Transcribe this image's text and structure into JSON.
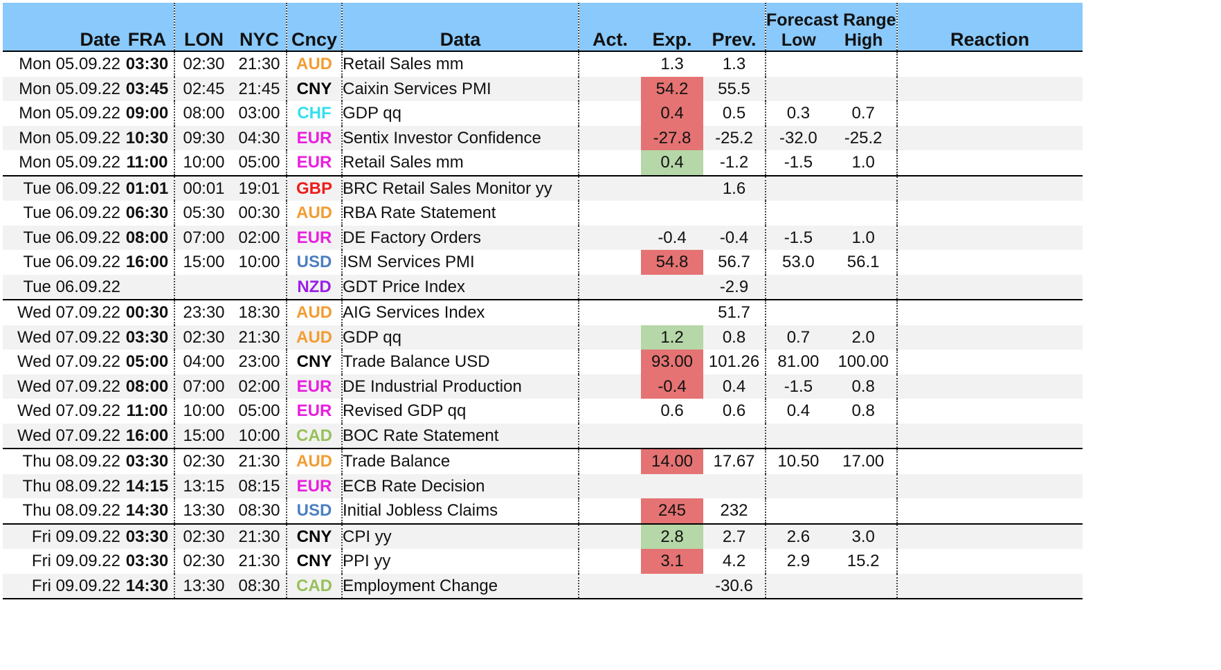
{
  "colors": {
    "header_bg": "#89c9fb",
    "exp_below": "#e57373",
    "exp_above": "#b6d7a8",
    "ccy": {
      "AUD": "#f39c33",
      "CNY": "#000000",
      "CHF": "#33e0ee",
      "EUR": "#ea1ee0",
      "GBP": "#ee1c1c",
      "USD": "#4b7fc2",
      "NZD": "#9b1fe8",
      "CAD": "#97c05a"
    }
  },
  "header": {
    "date": "Date",
    "fra": "FRA",
    "lon": "LON",
    "nyc": "NYC",
    "cncy": "Cncy",
    "data": "Data",
    "act": "Act.",
    "exp": "Exp.",
    "prev": "Prev.",
    "forecast_range": "Forecast Range",
    "low": "Low",
    "high": "High",
    "reaction": "Reaction"
  },
  "rows": [
    {
      "date": "Mon 05.09.22",
      "fra": "03:30",
      "lon": "02:30",
      "nyc": "21:30",
      "ccy": "AUD",
      "data": "Retail Sales mm",
      "act": "",
      "exp": "1.3",
      "exp_hl": "",
      "prev": "1.3",
      "low": "",
      "high": "",
      "reaction": "",
      "group_start": false
    },
    {
      "date": "Mon 05.09.22",
      "fra": "03:45",
      "lon": "02:45",
      "nyc": "21:45",
      "ccy": "CNY",
      "data": "Caixin Services PMI",
      "act": "",
      "exp": "54.2",
      "exp_hl": "red",
      "prev": "55.5",
      "low": "",
      "high": "",
      "reaction": "",
      "group_start": false
    },
    {
      "date": "Mon 05.09.22",
      "fra": "09:00",
      "lon": "08:00",
      "nyc": "03:00",
      "ccy": "CHF",
      "data": "GDP qq",
      "act": "",
      "exp": "0.4",
      "exp_hl": "red",
      "prev": "0.5",
      "low": "0.3",
      "high": "0.7",
      "reaction": "",
      "group_start": false
    },
    {
      "date": "Mon 05.09.22",
      "fra": "10:30",
      "lon": "09:30",
      "nyc": "04:30",
      "ccy": "EUR",
      "data": "Sentix Investor Confidence",
      "act": "",
      "exp": "-27.8",
      "exp_hl": "red",
      "prev": "-25.2",
      "low": "-32.0",
      "high": "-25.2",
      "reaction": "",
      "group_start": false
    },
    {
      "date": "Mon 05.09.22",
      "fra": "11:00",
      "lon": "10:00",
      "nyc": "05:00",
      "ccy": "EUR",
      "data": "Retail Sales mm",
      "act": "",
      "exp": "0.4",
      "exp_hl": "green",
      "prev": "-1.2",
      "low": "-1.5",
      "high": "1.0",
      "reaction": "",
      "group_start": false
    },
    {
      "date": "Tue 06.09.22",
      "fra": "01:01",
      "lon": "00:01",
      "nyc": "19:01",
      "ccy": "GBP",
      "data": "BRC Retail Sales Monitor yy",
      "act": "",
      "exp": "",
      "exp_hl": "",
      "prev": "1.6",
      "low": "",
      "high": "",
      "reaction": "",
      "group_start": true
    },
    {
      "date": "Tue 06.09.22",
      "fra": "06:30",
      "lon": "05:30",
      "nyc": "00:30",
      "ccy": "AUD",
      "data": "RBA Rate Statement",
      "act": "",
      "exp": "",
      "exp_hl": "",
      "prev": "",
      "low": "",
      "high": "",
      "reaction": "",
      "group_start": false
    },
    {
      "date": "Tue 06.09.22",
      "fra": "08:00",
      "lon": "07:00",
      "nyc": "02:00",
      "ccy": "EUR",
      "data": "DE Factory Orders",
      "act": "",
      "exp": "-0.4",
      "exp_hl": "",
      "prev": "-0.4",
      "low": "-1.5",
      "high": "1.0",
      "reaction": "",
      "group_start": false
    },
    {
      "date": "Tue 06.09.22",
      "fra": "16:00",
      "lon": "15:00",
      "nyc": "10:00",
      "ccy": "USD",
      "data": "ISM Services PMI",
      "act": "",
      "exp": "54.8",
      "exp_hl": "red",
      "prev": "56.7",
      "low": "53.0",
      "high": "56.1",
      "reaction": "",
      "group_start": false
    },
    {
      "date": "Tue 06.09.22",
      "fra": "",
      "lon": "",
      "nyc": "",
      "ccy": "NZD",
      "data": "GDT Price Index",
      "act": "",
      "exp": "",
      "exp_hl": "",
      "prev": "-2.9",
      "low": "",
      "high": "",
      "reaction": "",
      "group_start": false
    },
    {
      "date": "Wed 07.09.22",
      "fra": "00:30",
      "lon": "23:30",
      "nyc": "18:30",
      "ccy": "AUD",
      "data": "AIG Services Index",
      "act": "",
      "exp": "",
      "exp_hl": "",
      "prev": "51.7",
      "low": "",
      "high": "",
      "reaction": "",
      "group_start": true
    },
    {
      "date": "Wed 07.09.22",
      "fra": "03:30",
      "lon": "02:30",
      "nyc": "21:30",
      "ccy": "AUD",
      "data": "GDP qq",
      "act": "",
      "exp": "1.2",
      "exp_hl": "green",
      "prev": "0.8",
      "low": "0.7",
      "high": "2.0",
      "reaction": "",
      "group_start": false
    },
    {
      "date": "Wed 07.09.22",
      "fra": "05:00",
      "lon": "04:00",
      "nyc": "23:00",
      "ccy": "CNY",
      "data": "Trade Balance USD",
      "act": "",
      "exp": "93.00",
      "exp_hl": "red",
      "prev": "101.26",
      "low": "81.00",
      "high": "100.00",
      "reaction": "",
      "group_start": false
    },
    {
      "date": "Wed 07.09.22",
      "fra": "08:00",
      "lon": "07:00",
      "nyc": "02:00",
      "ccy": "EUR",
      "data": "DE Industrial Production",
      "act": "",
      "exp": "-0.4",
      "exp_hl": "red",
      "prev": "0.4",
      "low": "-1.5",
      "high": "0.8",
      "reaction": "",
      "group_start": false
    },
    {
      "date": "Wed 07.09.22",
      "fra": "11:00",
      "lon": "10:00",
      "nyc": "05:00",
      "ccy": "EUR",
      "data": "Revised GDP qq",
      "act": "",
      "exp": "0.6",
      "exp_hl": "",
      "prev": "0.6",
      "low": "0.4",
      "high": "0.8",
      "reaction": "",
      "group_start": false
    },
    {
      "date": "Wed 07.09.22",
      "fra": "16:00",
      "lon": "15:00",
      "nyc": "10:00",
      "ccy": "CAD",
      "data": "BOC Rate Statement",
      "act": "",
      "exp": "",
      "exp_hl": "",
      "prev": "",
      "low": "",
      "high": "",
      "reaction": "",
      "group_start": false
    },
    {
      "date": "Thu 08.09.22",
      "fra": "03:30",
      "lon": "02:30",
      "nyc": "21:30",
      "ccy": "AUD",
      "data": "Trade Balance",
      "act": "",
      "exp": "14.00",
      "exp_hl": "red",
      "prev": "17.67",
      "low": "10.50",
      "high": "17.00",
      "reaction": "",
      "group_start": true
    },
    {
      "date": "Thu 08.09.22",
      "fra": "14:15",
      "lon": "13:15",
      "nyc": "08:15",
      "ccy": "EUR",
      "data": "ECB Rate Decision",
      "act": "",
      "exp": "",
      "exp_hl": "",
      "prev": "",
      "low": "",
      "high": "",
      "reaction": "",
      "group_start": false
    },
    {
      "date": "Thu 08.09.22",
      "fra": "14:30",
      "lon": "13:30",
      "nyc": "08:30",
      "ccy": "USD",
      "data": "Initial Jobless Claims",
      "act": "",
      "exp": "245",
      "exp_hl": "red",
      "prev": "232",
      "low": "",
      "high": "",
      "reaction": "",
      "group_start": false
    },
    {
      "date": "Fri 09.09.22",
      "fra": "03:30",
      "lon": "02:30",
      "nyc": "21:30",
      "ccy": "CNY",
      "data": "CPI yy",
      "act": "",
      "exp": "2.8",
      "exp_hl": "green",
      "prev": "2.7",
      "low": "2.6",
      "high": "3.0",
      "reaction": "",
      "group_start": true
    },
    {
      "date": "Fri 09.09.22",
      "fra": "03:30",
      "lon": "02:30",
      "nyc": "21:30",
      "ccy": "CNY",
      "data": "PPI yy",
      "act": "",
      "exp": "3.1",
      "exp_hl": "red",
      "prev": "4.2",
      "low": "2.9",
      "high": "15.2",
      "reaction": "",
      "group_start": false
    },
    {
      "date": "Fri 09.09.22",
      "fra": "14:30",
      "lon": "13:30",
      "nyc": "08:30",
      "ccy": "CAD",
      "data": "Employment Change",
      "act": "",
      "exp": "",
      "exp_hl": "",
      "prev": "-30.6",
      "low": "",
      "high": "",
      "reaction": "",
      "group_start": false
    }
  ]
}
